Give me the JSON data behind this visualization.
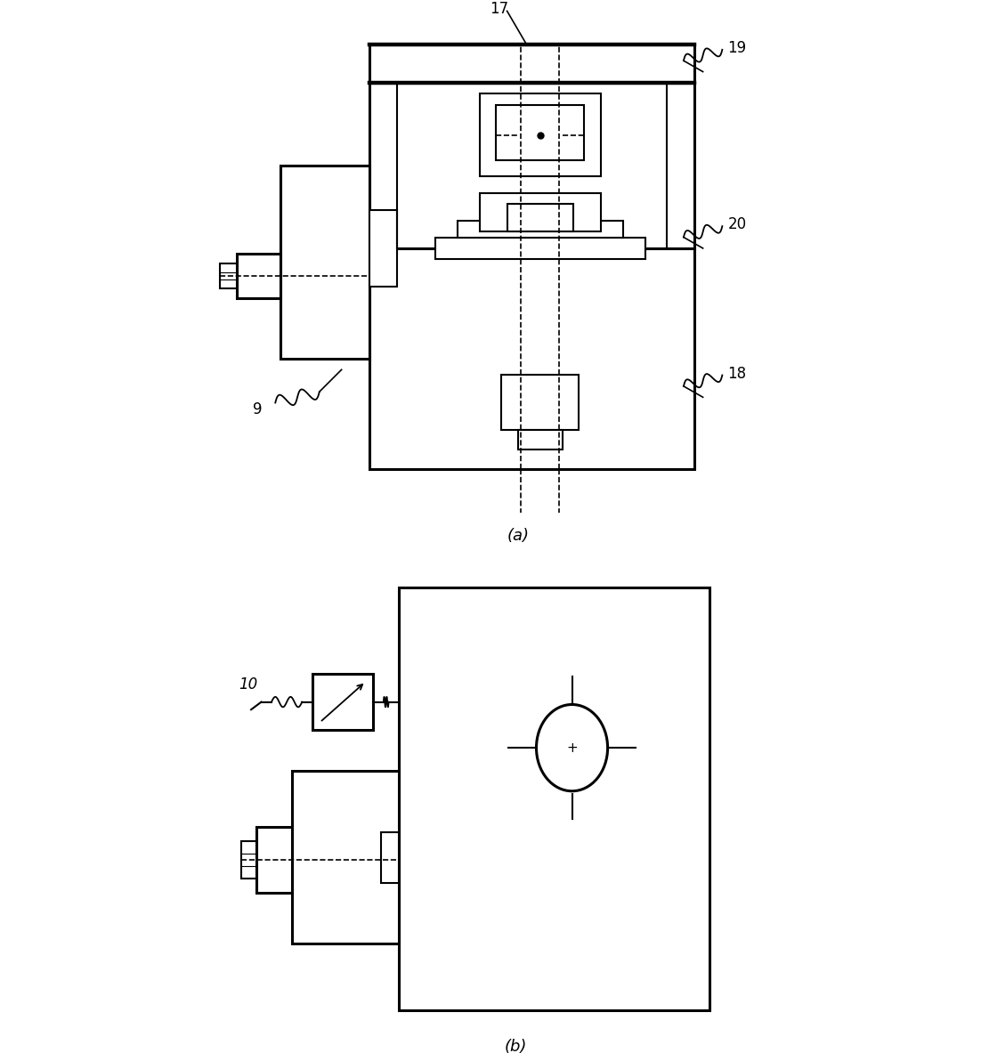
{
  "bg_color": "#ffffff",
  "line_color": "#000000",
  "lw_thick": 2.2,
  "lw_thin": 1.5,
  "lw_dashed": 1.2,
  "fig_width": 11.02,
  "fig_height": 11.92,
  "label_17": "17",
  "label_18": "18",
  "label_19": "19",
  "label_20": "20",
  "label_9": "9",
  "label_10": "10",
  "label_a": "(a)",
  "label_b": "(b)"
}
